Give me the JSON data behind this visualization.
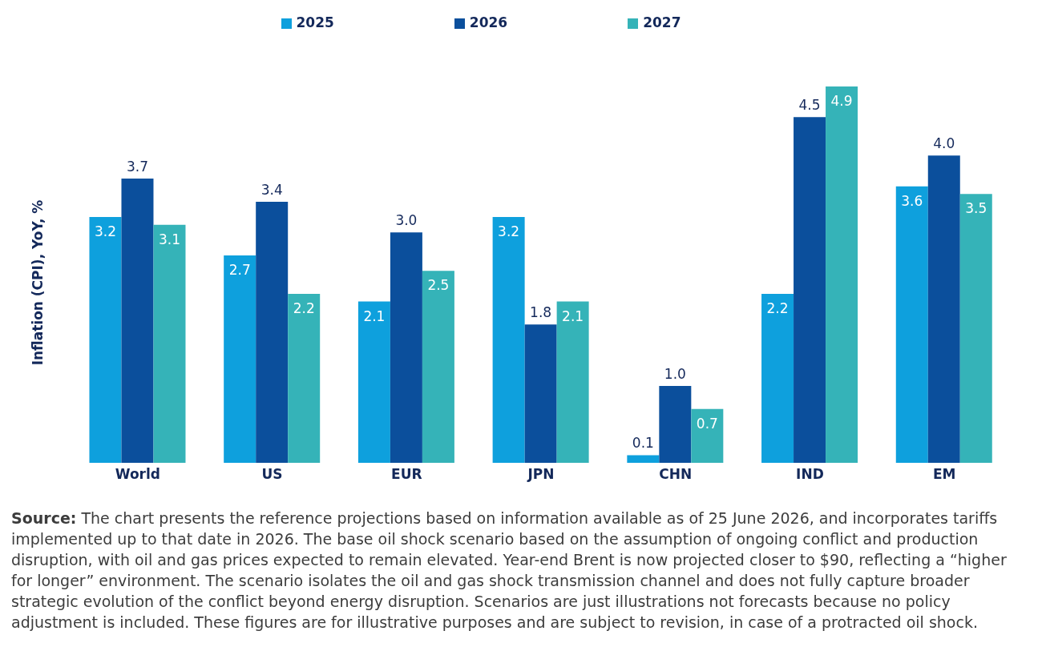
{
  "chart_data": {
    "type": "bar",
    "ylabel": "Inflation (CPI), YoY, %",
    "categories": [
      "World",
      "US",
      "EUR",
      "JPN",
      "CHN",
      "IND",
      "EM"
    ],
    "series": [
      {
        "name": "2025",
        "color": "#0ea0dd",
        "values": [
          3.2,
          2.7,
          2.1,
          3.2,
          0.1,
          2.2,
          3.6
        ],
        "value_labels": [
          "3.2",
          "2.7",
          "2.1",
          "3.2",
          "0.1",
          "2.2",
          "3.6"
        ]
      },
      {
        "name": "2026",
        "color": "#0b4f9c",
        "values": [
          3.7,
          3.4,
          3.0,
          1.8,
          1.0,
          4.5,
          4.0
        ],
        "value_labels": [
          "3.7",
          "3.4",
          "3.0",
          "1.8",
          "1.0",
          "4.5",
          "4.0"
        ]
      },
      {
        "name": "2027",
        "color": "#35b3b8",
        "values": [
          3.1,
          2.2,
          2.5,
          2.1,
          0.7,
          4.9,
          3.5
        ],
        "value_labels": [
          "3.1",
          "2.2",
          "2.5",
          "2.1",
          "0.7",
          "4.9",
          "3.5"
        ]
      }
    ],
    "legend": "top",
    "grid": false,
    "annotations": [
      "Source: The chart presents the reference projections based on information available as of 25 June 2026, and incorporates tariffs implemented up to that date in 2026. The base oil shock scenario based on the assumption of ongoing conflict and production disruption, with oil and gas prices expected to remain elevated. Year-end Brent is now projected closer to $90, reflecting a “higher for longer” environment. The scenario isolates the oil and gas shock transmission channel and does not fully capture broader strategic evolution of the conflict beyond energy disruption. Scenarios are just illustrations not forecasts because no policy adjustment is included. These figures are for illustrative purposes and are subject to revision, in case of a protracted oil shock."
    ]
  }
}
